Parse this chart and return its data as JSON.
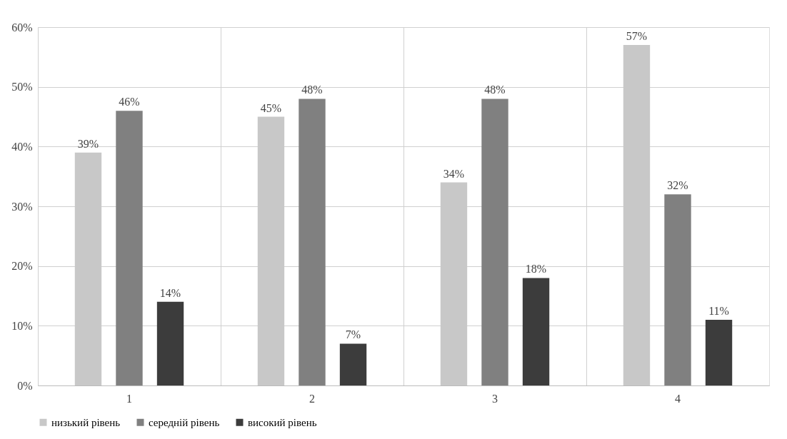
{
  "chart_data": {
    "type": "bar",
    "categories": [
      "1",
      "2",
      "3",
      "4"
    ],
    "series": [
      {
        "name": "низький рівень",
        "color": "#c8c8c8",
        "values": [
          39,
          45,
          34,
          57
        ],
        "value_labels": [
          "39%",
          "45%",
          "34%",
          "57%"
        ]
      },
      {
        "name": "середній рівень",
        "color": "#808080",
        "values": [
          46,
          48,
          48,
          32
        ],
        "value_labels": [
          "46%",
          "48%",
          "48%",
          "32%"
        ]
      },
      {
        "name": "високий рівень",
        "color": "#3c3c3c",
        "values": [
          14,
          7,
          18,
          11
        ],
        "value_labels": [
          "14%",
          "7%",
          "18%",
          "11%"
        ]
      }
    ],
    "ylim": [
      0,
      60
    ],
    "yticks": [
      {
        "value": 0,
        "label": "0%"
      },
      {
        "value": 10,
        "label": "10%"
      },
      {
        "value": 20,
        "label": "20%"
      },
      {
        "value": 30,
        "label": "30%"
      },
      {
        "value": 40,
        "label": "40%"
      },
      {
        "value": 50,
        "label": "50%"
      },
      {
        "value": 60,
        "label": "60%"
      }
    ],
    "grid": true,
    "legend": "bottom"
  }
}
